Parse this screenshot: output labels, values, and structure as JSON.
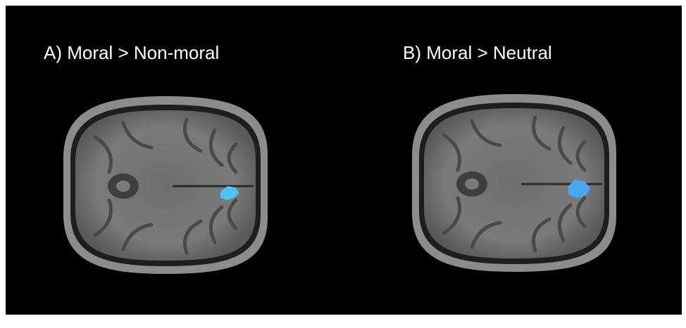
{
  "panels": [
    {
      "label": "A) Moral > Non-moral"
    },
    {
      "label": "B) Moral > Neutral"
    }
  ]
}
